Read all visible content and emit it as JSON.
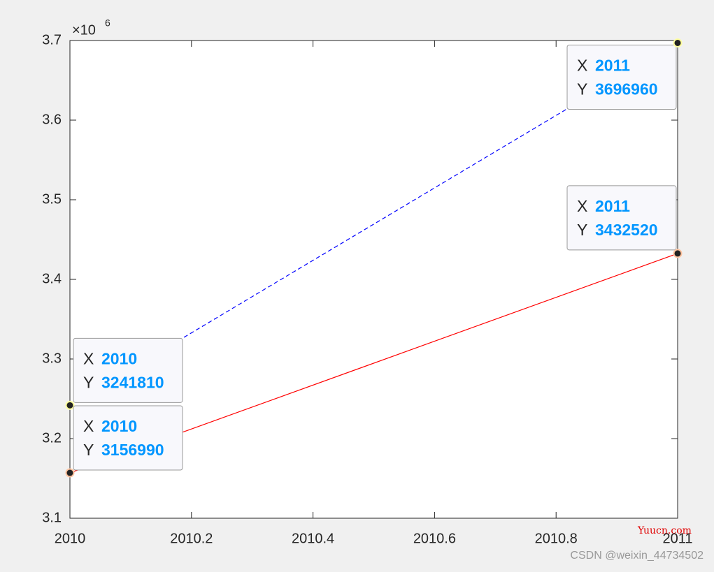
{
  "chart_data": {
    "type": "line",
    "x": [
      2010,
      2011
    ],
    "series": [
      {
        "color": "#0000ff",
        "dash": true,
        "values": [
          3241810,
          3696960
        ]
      },
      {
        "color": "#ff0000",
        "dash": false,
        "values": [
          3156990,
          3432520
        ]
      }
    ],
    "xlim": [
      2010,
      2011
    ],
    "xticks": [
      2010,
      2010.2,
      2010.4,
      2010.6,
      2010.8,
      2011
    ],
    "ylim": [
      3100000,
      3700000
    ],
    "yticks": [
      {
        "value": 3100000,
        "label": "3.1"
      },
      {
        "value": 3200000,
        "label": "3.2"
      },
      {
        "value": 3300000,
        "label": "3.3"
      },
      {
        "value": 3400000,
        "label": "3.4"
      },
      {
        "value": 3500000,
        "label": "3.5"
      },
      {
        "value": 3600000,
        "label": "3.6"
      },
      {
        "value": 3700000,
        "label": "3.7"
      }
    ],
    "y_exponent_label": {
      "base": "×10",
      "exponent": "6"
    },
    "datatip_labels": [
      "X",
      "Y"
    ],
    "grid": false
  },
  "watermarks": [
    "Yuucn.com",
    "CSDN @weixin_44734502"
  ]
}
